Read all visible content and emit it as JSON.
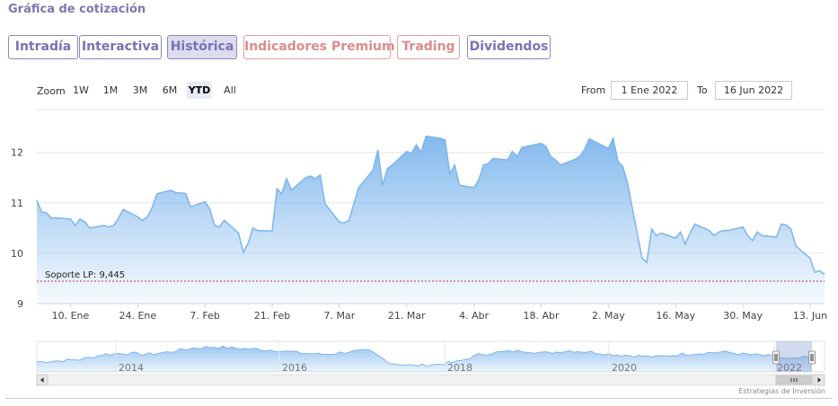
{
  "page": {
    "title": "Gráfica de cotización"
  },
  "tabs": [
    {
      "label": "Intradía",
      "active": false,
      "style": "purple"
    },
    {
      "label": "Interactiva",
      "active": false,
      "style": "purple"
    },
    {
      "label": "Histórica",
      "active": true,
      "style": "purple"
    },
    {
      "label": "Indicadores Premium",
      "active": false,
      "style": "red"
    },
    {
      "label": "Trading",
      "active": false,
      "style": "red"
    },
    {
      "label": "Dividendos",
      "active": false,
      "style": "purple"
    }
  ],
  "zoom": {
    "label": "Zoom",
    "buttons": [
      "1W",
      "1M",
      "3M",
      "6M",
      "YTD",
      "All"
    ],
    "selected": "YTD"
  },
  "range": {
    "from_label": "From",
    "from_value": "1 Ene 2022",
    "to_label": "To",
    "to_value": "16 Jun 2022"
  },
  "colors": {
    "line": "#7cb5ec",
    "support": "#c0392b",
    "tab_purple": "#7773b4",
    "tab_red": "#dc8b8b"
  },
  "chart_data": {
    "type": "area",
    "x_ticks": [
      "10. Ene",
      "24. Ene",
      "7. Feb",
      "21. Feb",
      "7. Mar",
      "21. Mar",
      "4. Abr",
      "18. Abr",
      "2. May",
      "16. May",
      "30. May",
      "13. Jun"
    ],
    "y_ticks": [
      "9",
      "10",
      "11",
      "12"
    ],
    "ylim": [
      9,
      12.85
    ],
    "series": [
      {
        "dates": [
          "2022-01-03",
          "2022-01-04",
          "2022-01-05",
          "2022-01-06",
          "2022-01-07",
          "2022-01-10",
          "2022-01-11",
          "2022-01-12",
          "2022-01-13",
          "2022-01-14",
          "2022-01-17",
          "2022-01-18",
          "2022-01-19",
          "2022-01-20",
          "2022-01-21",
          "2022-01-24",
          "2022-01-25",
          "2022-01-26",
          "2022-01-27",
          "2022-01-28",
          "2022-01-31",
          "2022-02-01",
          "2022-02-02",
          "2022-02-03",
          "2022-02-04",
          "2022-02-07",
          "2022-02-08",
          "2022-02-09",
          "2022-02-10",
          "2022-02-11",
          "2022-02-14",
          "2022-02-15",
          "2022-02-16",
          "2022-02-17",
          "2022-02-18",
          "2022-02-21",
          "2022-02-22",
          "2022-02-23",
          "2022-02-24",
          "2022-02-25",
          "2022-02-28",
          "2022-03-01",
          "2022-03-02",
          "2022-03-03",
          "2022-03-04",
          "2022-03-07",
          "2022-03-08",
          "2022-03-09",
          "2022-03-10",
          "2022-03-11",
          "2022-03-14",
          "2022-03-15",
          "2022-03-16",
          "2022-03-17",
          "2022-03-18",
          "2022-03-21",
          "2022-03-22",
          "2022-03-23",
          "2022-03-24",
          "2022-03-25",
          "2022-03-28",
          "2022-03-29",
          "2022-03-30",
          "2022-03-31",
          "2022-04-01",
          "2022-04-04",
          "2022-04-05",
          "2022-04-06",
          "2022-04-07",
          "2022-04-08",
          "2022-04-11",
          "2022-04-12",
          "2022-04-13",
          "2022-04-14",
          "2022-04-18",
          "2022-04-19",
          "2022-04-20",
          "2022-04-21",
          "2022-04-22",
          "2022-04-25",
          "2022-04-26",
          "2022-04-27",
          "2022-04-28",
          "2022-04-29",
          "2022-05-02",
          "2022-05-03",
          "2022-05-04",
          "2022-05-05",
          "2022-05-06",
          "2022-05-09",
          "2022-05-10",
          "2022-05-11",
          "2022-05-12",
          "2022-05-13",
          "2022-05-16",
          "2022-05-17",
          "2022-05-18",
          "2022-05-19",
          "2022-05-20",
          "2022-05-23",
          "2022-05-24",
          "2022-05-25",
          "2022-05-26",
          "2022-05-27",
          "2022-05-30",
          "2022-05-31",
          "2022-06-01",
          "2022-06-02",
          "2022-06-03",
          "2022-06-06",
          "2022-06-07",
          "2022-06-08",
          "2022-06-09",
          "2022-06-10",
          "2022-06-13",
          "2022-06-14",
          "2022-06-15",
          "2022-06-16"
        ],
        "values": [
          11.05,
          10.82,
          10.8,
          10.7,
          10.7,
          10.68,
          10.55,
          10.68,
          10.62,
          10.5,
          10.55,
          10.52,
          10.55,
          10.7,
          10.87,
          10.72,
          10.65,
          10.72,
          10.9,
          11.18,
          11.25,
          11.2,
          11.2,
          11.18,
          10.92,
          11.02,
          10.88,
          10.55,
          10.52,
          10.65,
          10.4,
          10.02,
          10.2,
          10.5,
          10.45,
          10.44,
          11.28,
          11.18,
          11.48,
          11.25,
          11.5,
          11.53,
          11.48,
          11.55,
          10.98,
          10.62,
          10.6,
          10.65,
          10.98,
          11.3,
          11.65,
          12.05,
          11.35,
          11.68,
          11.75,
          12.02,
          11.98,
          12.15,
          12.0,
          12.32,
          12.28,
          12.25,
          11.58,
          11.75,
          11.35,
          11.3,
          11.45,
          11.75,
          11.78,
          11.88,
          11.85,
          12.02,
          11.92,
          12.1,
          12.18,
          12.12,
          11.92,
          11.85,
          11.75,
          11.86,
          11.92,
          12.05,
          12.27,
          12.22,
          12.08,
          12.28,
          11.82,
          11.72,
          11.38,
          9.9,
          9.82,
          10.48,
          10.35,
          10.4,
          10.3,
          10.42,
          10.18,
          10.4,
          10.58,
          10.45,
          10.35,
          10.42,
          10.45,
          10.45,
          10.52,
          10.35,
          10.25,
          10.42,
          10.35,
          10.32,
          10.58,
          10.56,
          10.48,
          10.15,
          9.9,
          9.62,
          9.65,
          9.58
        ]
      }
    ],
    "support": {
      "label": "Soporte LP: 9,445",
      "value": 9.445
    },
    "navigator": {
      "year_labels": [
        "2014",
        "2016",
        "2018",
        "2020",
        "2022"
      ],
      "scrollbar_icon": "grip-lines-icon"
    },
    "credits": "Estrategias de Inversión"
  }
}
